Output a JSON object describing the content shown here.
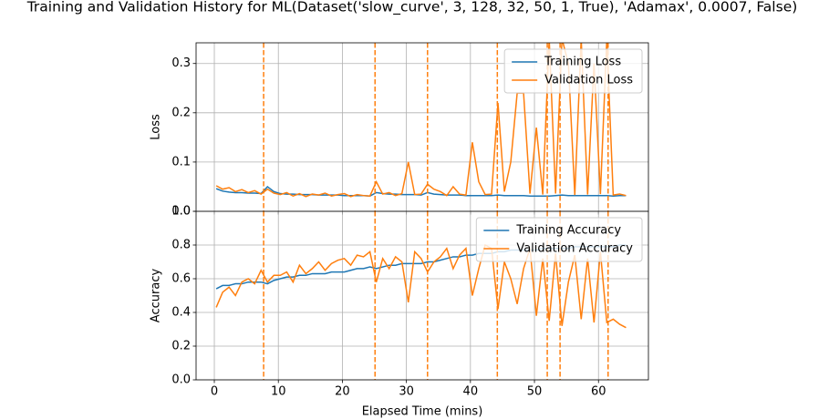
{
  "title": "Training and Validation History for ML(Dataset('slow_curve', 3, 128, 32, 50, 1, True), 'Adamax', 0.0007, False)",
  "chart_data": [
    {
      "type": "line",
      "ylabel": "Loss",
      "grid": true,
      "legend": "upper right",
      "show_xticklabels": false,
      "xlim": [
        -2.85,
        67.8
      ],
      "xticks": [
        0,
        10,
        20,
        30,
        40,
        50,
        60
      ],
      "ylim": [
        0,
        0.342
      ],
      "yticks": [
        {
          "value": 0,
          "label": "0.0"
        },
        0.1,
        0.2,
        0.3
      ],
      "vlines": [
        7.7,
        25.1,
        33.3,
        44.2,
        52.0,
        54.0,
        61.5
      ],
      "vline_color": "#ff7f0e",
      "x": [
        0.3,
        1.3,
        2.3,
        3.3,
        4.3,
        5.3,
        6.3,
        7.3,
        8.3,
        9.3,
        10.3,
        11.3,
        12.3,
        13.3,
        14.3,
        15.3,
        16.3,
        17.3,
        18.3,
        19.3,
        20.3,
        21.3,
        22.3,
        23.3,
        24.3,
        25.3,
        26.3,
        27.3,
        28.3,
        29.3,
        30.3,
        31.3,
        32.3,
        33.3,
        34.3,
        35.3,
        36.3,
        37.3,
        38.3,
        39.3,
        40.3,
        41.3,
        42.3,
        43.3,
        44.3,
        45.3,
        46.3,
        47.3,
        48.3,
        49.3,
        50.3,
        51.3,
        52.3,
        53.3,
        54.3,
        55.3,
        56.3,
        57.3,
        58.3,
        59.3,
        60.3,
        61.3,
        62.3,
        63.3,
        64.3
      ],
      "series": [
        {
          "name": "Training Loss",
          "color": "#1f77b4",
          "values": [
            0.046,
            0.041,
            0.039,
            0.038,
            0.038,
            0.037,
            0.037,
            0.036,
            0.05,
            0.04,
            0.036,
            0.035,
            0.035,
            0.034,
            0.034,
            0.034,
            0.033,
            0.033,
            0.033,
            0.033,
            0.032,
            0.032,
            0.032,
            0.032,
            0.031,
            0.038,
            0.036,
            0.035,
            0.035,
            0.034,
            0.034,
            0.034,
            0.033,
            0.038,
            0.035,
            0.034,
            0.033,
            0.033,
            0.033,
            0.032,
            0.032,
            0.032,
            0.032,
            0.032,
            0.033,
            0.032,
            0.032,
            0.032,
            0.032,
            0.031,
            0.031,
            0.031,
            0.031,
            0.032,
            0.033,
            0.032,
            0.032,
            0.032,
            0.032,
            0.032,
            0.032,
            0.032,
            0.031,
            0.032,
            0.032
          ]
        },
        {
          "name": "Validation Loss",
          "color": "#ff7f0e",
          "values": [
            0.052,
            0.045,
            0.048,
            0.04,
            0.044,
            0.038,
            0.042,
            0.035,
            0.045,
            0.037,
            0.034,
            0.038,
            0.031,
            0.036,
            0.03,
            0.035,
            0.033,
            0.037,
            0.031,
            0.034,
            0.036,
            0.03,
            0.034,
            0.032,
            0.031,
            0.06,
            0.035,
            0.038,
            0.032,
            0.036,
            0.1,
            0.034,
            0.035,
            0.055,
            0.045,
            0.04,
            0.032,
            0.05,
            0.035,
            0.033,
            0.14,
            0.06,
            0.034,
            0.035,
            0.22,
            0.04,
            0.1,
            0.24,
            0.24,
            0.036,
            0.17,
            0.034,
            0.35,
            0.036,
            0.35,
            0.3,
            0.033,
            0.35,
            0.034,
            0.3,
            0.035,
            0.35,
            0.033,
            0.035,
            0.032
          ]
        }
      ]
    },
    {
      "type": "line",
      "ylabel": "Accuracy",
      "xlabel": "Elapsed Time (mins)",
      "grid": true,
      "legend": "upper right",
      "show_xticklabels": true,
      "xlim": [
        -2.85,
        67.8
      ],
      "xticks": [
        0,
        10,
        20,
        30,
        40,
        50,
        60
      ],
      "ylim": [
        0,
        1.0
      ],
      "yticks": [
        {
          "value": 0,
          "label": "0.0"
        },
        0.2,
        0.4,
        0.6,
        0.8,
        {
          "value": 1.0,
          "label": "1.0"
        }
      ],
      "vlines": [
        7.7,
        25.1,
        33.3,
        44.2,
        52.0,
        54.0,
        61.5
      ],
      "vline_color": "#ff7f0e",
      "x": [
        0.3,
        1.3,
        2.3,
        3.3,
        4.3,
        5.3,
        6.3,
        7.3,
        8.3,
        9.3,
        10.3,
        11.3,
        12.3,
        13.3,
        14.3,
        15.3,
        16.3,
        17.3,
        18.3,
        19.3,
        20.3,
        21.3,
        22.3,
        23.3,
        24.3,
        25.3,
        26.3,
        27.3,
        28.3,
        29.3,
        30.3,
        31.3,
        32.3,
        33.3,
        34.3,
        35.3,
        36.3,
        37.3,
        38.3,
        39.3,
        40.3,
        41.3,
        42.3,
        43.3,
        44.3,
        45.3,
        46.3,
        47.3,
        48.3,
        49.3,
        50.3,
        51.3,
        52.3,
        53.3,
        54.3,
        55.3,
        56.3,
        57.3,
        58.3,
        59.3,
        60.3,
        61.3,
        62.3,
        63.3,
        64.3
      ],
      "series": [
        {
          "name": "Training Accuracy",
          "color": "#1f77b4",
          "values": [
            0.54,
            0.56,
            0.56,
            0.57,
            0.57,
            0.58,
            0.58,
            0.58,
            0.57,
            0.59,
            0.6,
            0.61,
            0.61,
            0.62,
            0.62,
            0.63,
            0.63,
            0.63,
            0.64,
            0.64,
            0.64,
            0.65,
            0.66,
            0.66,
            0.67,
            0.66,
            0.67,
            0.68,
            0.68,
            0.69,
            0.69,
            0.69,
            0.69,
            0.7,
            0.7,
            0.71,
            0.72,
            0.73,
            0.73,
            0.74,
            0.74,
            0.75,
            0.75,
            0.75,
            0.76,
            0.76,
            0.77,
            0.77,
            0.77,
            0.77,
            0.77,
            0.78,
            0.78,
            0.78,
            0.78,
            0.78,
            0.79,
            0.79,
            0.79,
            0.79,
            0.79,
            0.79,
            0.79,
            0.8,
            0.8
          ]
        },
        {
          "name": "Validation Accuracy",
          "color": "#ff7f0e",
          "values": [
            0.43,
            0.52,
            0.55,
            0.5,
            0.58,
            0.6,
            0.57,
            0.65,
            0.58,
            0.62,
            0.62,
            0.64,
            0.58,
            0.68,
            0.63,
            0.66,
            0.7,
            0.65,
            0.69,
            0.71,
            0.72,
            0.68,
            0.74,
            0.73,
            0.76,
            0.58,
            0.72,
            0.66,
            0.73,
            0.7,
            0.46,
            0.76,
            0.72,
            0.64,
            0.7,
            0.73,
            0.78,
            0.66,
            0.74,
            0.78,
            0.5,
            0.66,
            0.8,
            0.78,
            0.42,
            0.7,
            0.6,
            0.45,
            0.66,
            0.78,
            0.38,
            0.72,
            0.35,
            0.75,
            0.32,
            0.58,
            0.74,
            0.36,
            0.72,
            0.34,
            0.76,
            0.34,
            0.36,
            0.33,
            0.31
          ]
        }
      ]
    }
  ]
}
